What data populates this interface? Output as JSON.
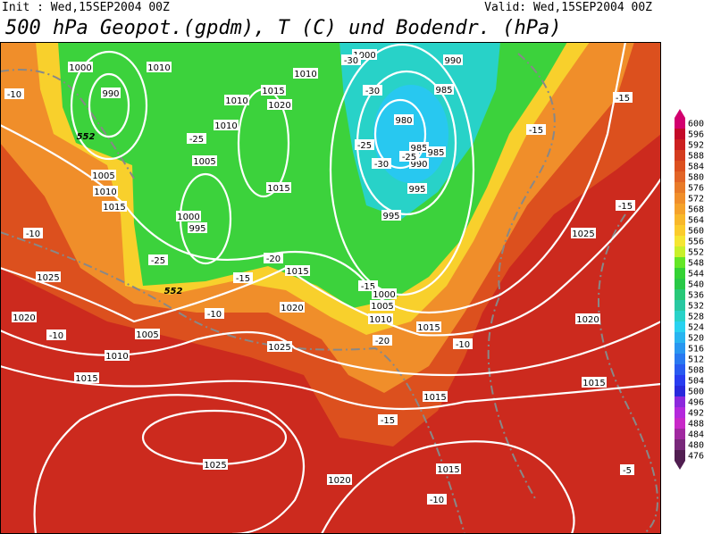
{
  "header": {
    "init": "Init : Wed,15SEP2004 00Z",
    "valid": "Valid: Wed,15SEP2004 00Z",
    "title": "500 hPa Geopot.(gpdm), T (C) und Bodendr. (hPa)"
  },
  "colorbar": {
    "labels": [
      600,
      596,
      592,
      588,
      584,
      580,
      576,
      572,
      568,
      564,
      560,
      556,
      552,
      548,
      544,
      540,
      536,
      532,
      528,
      524,
      520,
      516,
      512,
      508,
      504,
      500,
      496,
      492,
      488,
      484,
      480,
      476
    ],
    "colors": [
      "#d2006e",
      "#c40a28",
      "#cc2020",
      "#d43c1e",
      "#dc501e",
      "#e26426",
      "#e87a28",
      "#f08e2a",
      "#f5a22a",
      "#f8b82a",
      "#fbcc2c",
      "#f5e632",
      "#c8f02a",
      "#64e626",
      "#34d234",
      "#28c846",
      "#28c878",
      "#28c8a2",
      "#28d2c8",
      "#28d2f0",
      "#28b4f0",
      "#2896f0",
      "#2878f0",
      "#285af0",
      "#283cf0",
      "#2828dc",
      "#8c28dc",
      "#b428dc",
      "#c828c8",
      "#a028a0",
      "#78287a",
      "#501e50"
    ]
  },
  "map_labels": [
    "1000",
    "990",
    "1010",
    "1010",
    "1000",
    "990",
    "985",
    "-30",
    "-30",
    "1015",
    "1010",
    "1020",
    "980",
    "1010",
    "-25",
    "-25",
    "985",
    "985",
    "990",
    "-30",
    "-25",
    "1005",
    "1005",
    "1010",
    "1015",
    "995",
    "1015",
    "1000",
    "995",
    "995",
    "-10",
    "-15",
    "-15",
    "-15",
    "1025",
    "-10",
    "-25",
    "-20",
    "1015",
    "1025",
    "-15",
    "-15",
    "1000",
    "1005",
    "1020",
    "-10",
    "1010",
    "-20",
    "1020",
    "1020",
    "1015",
    "-10",
    "1005",
    "-10",
    "1025",
    "1010",
    "1015",
    "1015",
    "1015",
    "-15",
    "1025",
    "1015",
    "-5",
    "1020",
    "-10",
    "552",
    "552"
  ]
}
